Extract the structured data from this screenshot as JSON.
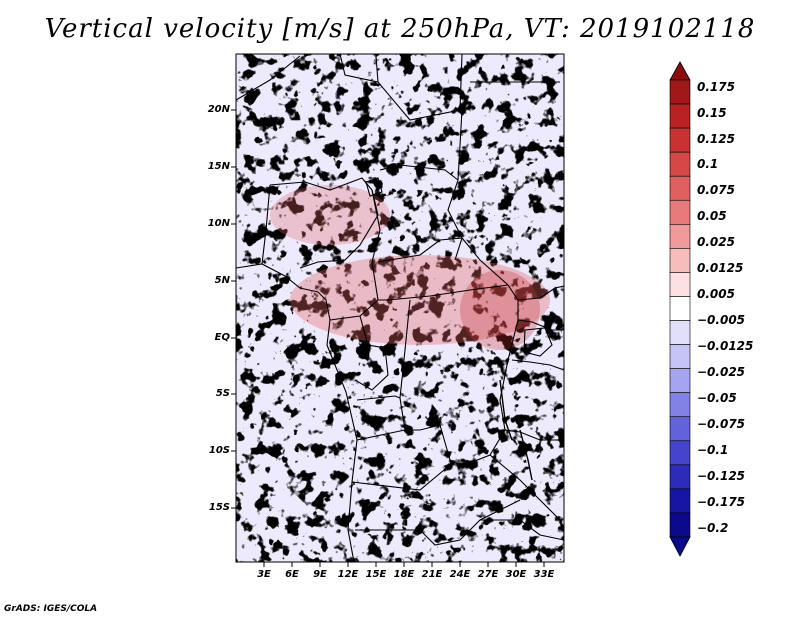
{
  "figure": {
    "title": "Vertical velocity [m/s] at 250hPa, VT: 2019102118",
    "credit": "GrADS: IGES/COLA"
  },
  "map": {
    "lat_labels": [
      "20N",
      "15N",
      "10N",
      "5N",
      "EQ",
      "5S",
      "10S",
      "15S"
    ],
    "lon_labels": [
      "3E",
      "6E",
      "9E",
      "12E",
      "15E",
      "18E",
      "21E",
      "24E",
      "27E",
      "30E",
      "33E"
    ]
  },
  "colorbar": {
    "labels": [
      "0.175",
      "0.15",
      "0.125",
      "0.1",
      "0.075",
      "0.05",
      "0.025",
      "0.0125",
      "0.005",
      "−0.005",
      "−0.0125",
      "−0.025",
      "−0.05",
      "−0.075",
      "−0.1",
      "−0.125",
      "−0.175",
      "−0.2"
    ],
    "colors": [
      "#a01818",
      "#b82222",
      "#c83232",
      "#d64848",
      "#e06060",
      "#e87a7a",
      "#f09a9a",
      "#f7bcbc",
      "#fde0e0",
      "#ffffff",
      "#e0e0fc",
      "#c4c4f6",
      "#a4a4f0",
      "#8282e6",
      "#6262da",
      "#4444cc",
      "#2c2cb8",
      "#1616a4",
      "#0a0a8a"
    ],
    "top_arrow_color": "#8c0a0a",
    "bottom_arrow_color": "#0a0a8a"
  }
}
